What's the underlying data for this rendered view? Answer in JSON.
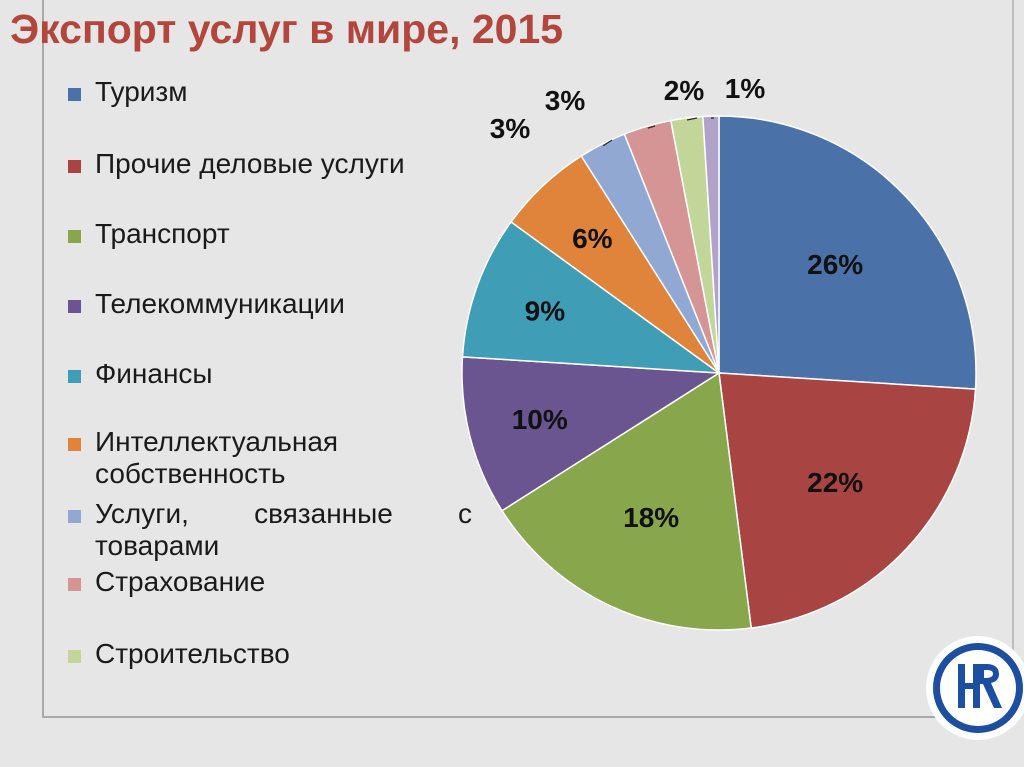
{
  "title": "Экспорт услуг в мире, 2015",
  "chart_data": {
    "type": "pie",
    "title": "Экспорт услуг в мире, 2015",
    "legend_position": "left",
    "slices": [
      {
        "label": "Туризм",
        "value": 26,
        "display": "26%",
        "color": "#4a72a8"
      },
      {
        "label": "Прочие деловые услуги",
        "value": 22,
        "display": "22%",
        "color": "#a84442"
      },
      {
        "label": "Транспорт",
        "value": 18,
        "display": "18%",
        "color": "#88a64c"
      },
      {
        "label": "Телекоммуникации",
        "value": 10,
        "display": "10%",
        "color": "#6b5590"
      },
      {
        "label": "Финансы",
        "value": 9,
        "display": "9%",
        "color": "#3f9db5"
      },
      {
        "label": "Интеллектуальная собственность",
        "value": 6,
        "display": "6%",
        "color": "#e0833b"
      },
      {
        "label": "Услуги, связанные с товарами",
        "value": 3,
        "display": "3%",
        "color": "#91a9d2"
      },
      {
        "label": "Страхование",
        "value": 3,
        "display": "3%",
        "color": "#d69595"
      },
      {
        "label": "Строительство",
        "value": 2,
        "display": "2%",
        "color": "#c2d69a"
      },
      {
        "label": "",
        "value": 1,
        "display": "1%",
        "color": "#b1a2c9"
      }
    ]
  },
  "colors": {
    "title": "#b2463c",
    "background": "#e6e6e6",
    "logo": "#1c4fa0"
  }
}
